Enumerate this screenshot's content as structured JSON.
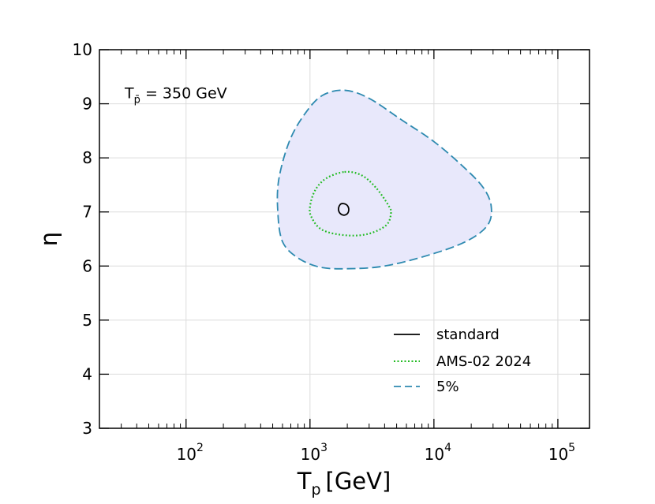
{
  "chart_data": {
    "type": "line",
    "title": "",
    "xlabel_main": "T",
    "xlabel_sub": "p",
    "xlabel_unit": "[GeV]",
    "ylabel": "η",
    "xscale": "log",
    "xlim": [
      20,
      180000
    ],
    "ylim": [
      3,
      10
    ],
    "x_tick_values": [
      100,
      1000,
      10000,
      100000
    ],
    "x_tick_bases": [
      "10",
      "10",
      "10",
      "10"
    ],
    "x_tick_exps": [
      "2",
      "3",
      "4",
      "5"
    ],
    "y_ticks": [
      3,
      4,
      5,
      6,
      7,
      8,
      9,
      10
    ],
    "y_tick_labels": [
      "3",
      "4",
      "5",
      "6",
      "7",
      "8",
      "9",
      "10"
    ],
    "grid": true,
    "annotation": {
      "main": "T",
      "sub": "p̄",
      "rest": " = 350 GeV",
      "x_value": 32,
      "y_value": 9.1
    },
    "legend_position": "lower-right",
    "series": [
      {
        "name": "standard",
        "style": "solid",
        "color": "#000000",
        "fill": null,
        "points": [
          [
            1780,
            7.15
          ],
          [
            1950,
            7.14
          ],
          [
            2050,
            7.07
          ],
          [
            2020,
            6.98
          ],
          [
            1880,
            6.94
          ],
          [
            1740,
            6.98
          ],
          [
            1700,
            7.07
          ],
          [
            1780,
            7.15
          ]
        ]
      },
      {
        "name": "AMS-02 2024",
        "style": "dotted",
        "color": "#22bb22",
        "fill": null,
        "points": [
          [
            1900,
            7.74
          ],
          [
            2600,
            7.68
          ],
          [
            3400,
            7.45
          ],
          [
            4300,
            7.12
          ],
          [
            4500,
            6.97
          ],
          [
            4100,
            6.75
          ],
          [
            2900,
            6.59
          ],
          [
            1900,
            6.57
          ],
          [
            1250,
            6.67
          ],
          [
            1030,
            6.9
          ],
          [
            1000,
            7.1
          ],
          [
            1100,
            7.4
          ],
          [
            1350,
            7.62
          ],
          [
            1900,
            7.74
          ]
        ]
      },
      {
        "name": "5%",
        "style": "dashed",
        "color": "#2e8ab0",
        "fill": "#e8e8fb",
        "points": [
          [
            1900,
            9.25
          ],
          [
            3000,
            9.1
          ],
          [
            5500,
            8.7
          ],
          [
            10000,
            8.3
          ],
          [
            17000,
            7.85
          ],
          [
            25000,
            7.45
          ],
          [
            29000,
            7.1
          ],
          [
            27000,
            6.75
          ],
          [
            18000,
            6.45
          ],
          [
            9000,
            6.2
          ],
          [
            4000,
            6.0
          ],
          [
            2000,
            5.95
          ],
          [
            1200,
            5.98
          ],
          [
            800,
            6.15
          ],
          [
            600,
            6.45
          ],
          [
            550,
            7.0
          ],
          [
            560,
            7.6
          ],
          [
            680,
            8.3
          ],
          [
            900,
            8.8
          ],
          [
            1250,
            9.15
          ],
          [
            1900,
            9.25
          ]
        ]
      }
    ]
  }
}
